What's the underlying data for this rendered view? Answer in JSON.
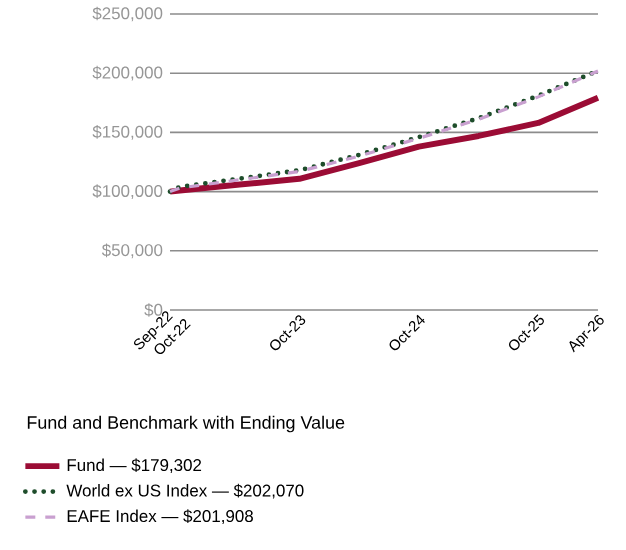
{
  "chart_data": {
    "type": "line",
    "legend_title": "Fund and Benchmark with Ending Value",
    "xlim": [
      "2022-09",
      "2026-04"
    ],
    "xticks": [
      {
        "value": "2022-09",
        "label": "Sep-22"
      },
      {
        "value": "2022-10",
        "label": "Oct-22"
      },
      {
        "value": "2023-10",
        "label": "Oct-23"
      },
      {
        "value": "2024-10",
        "label": "Oct-24"
      },
      {
        "value": "2025-10",
        "label": "Oct-25"
      },
      {
        "value": "2026-04",
        "label": "Apr-26"
      }
    ],
    "ylim": [
      0,
      250000
    ],
    "yticks": [
      {
        "value": 0,
        "label": "$0"
      },
      {
        "value": 50000,
        "label": "$50,000"
      },
      {
        "value": 100000,
        "label": "$100,000"
      },
      {
        "value": 150000,
        "label": "$150,000"
      },
      {
        "value": 200000,
        "label": "$200,000"
      },
      {
        "value": 250000,
        "label": "$250,000"
      }
    ],
    "grid": "y",
    "legend": "bottom",
    "x": [
      "2022-09",
      "2022-10",
      "2023-04",
      "2023-10",
      "2024-04",
      "2024-10",
      "2025-04",
      "2025-10",
      "2026-04"
    ],
    "series": [
      {
        "name": "Fund — $179,302",
        "color": "#9b0c35",
        "line_style": "solid",
        "values": [
          100000,
          101000,
          106000,
          110800,
          124000,
          138000,
          147000,
          158000,
          179302
        ]
      },
      {
        "name": "World ex US Index — $202,070",
        "color": "#1e4d2b",
        "line_style": "dotted",
        "values": [
          100000,
          104000,
          111000,
          118000,
          131000,
          146000,
          162000,
          181000,
          202070
        ]
      },
      {
        "name": "EAFE Index — $201,908",
        "color": "#c9a0d0",
        "line_style": "dashed",
        "values": [
          100000,
          103000,
          110000,
          117000,
          130000,
          145000,
          161000,
          180000,
          201908
        ]
      }
    ]
  }
}
